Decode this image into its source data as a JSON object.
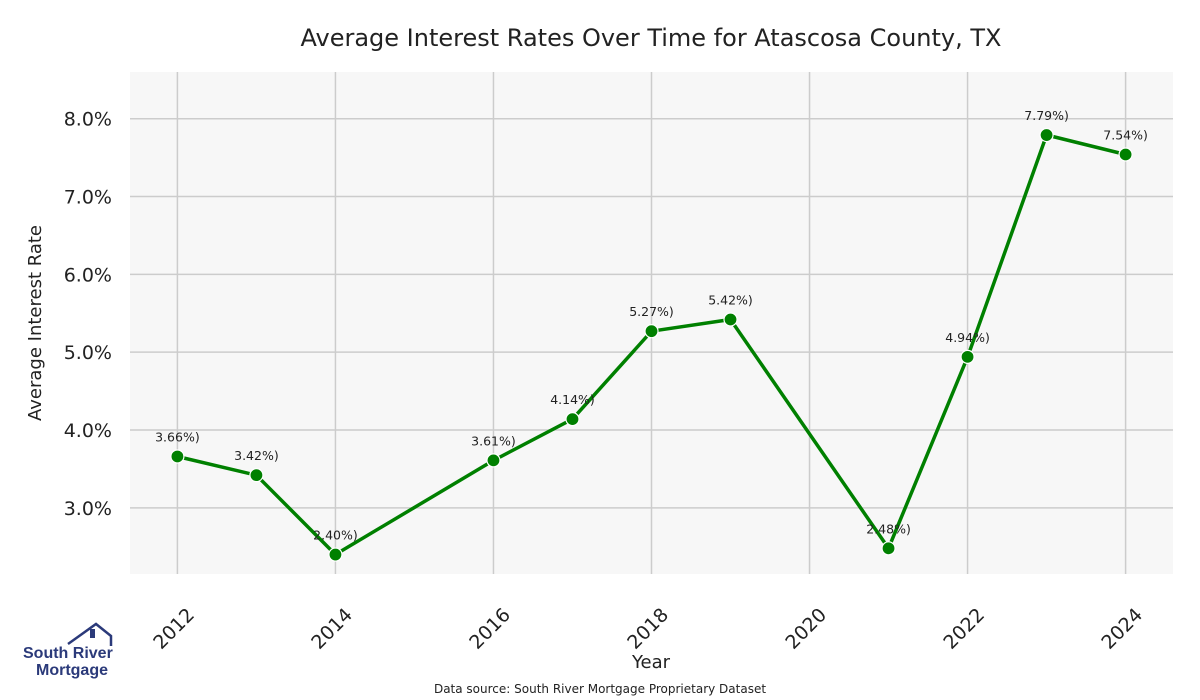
{
  "chart_data": {
    "type": "line",
    "title": "Average Interest Rates Over Time for Atascosa County, TX",
    "xlabel": "Year",
    "ylabel": "Average Interest Rate",
    "x": [
      2012,
      2013,
      2014,
      2016,
      2017,
      2018,
      2019,
      2021,
      2022,
      2023,
      2024
    ],
    "y": [
      3.66,
      3.42,
      2.4,
      3.61,
      4.14,
      5.27,
      5.42,
      2.48,
      4.94,
      7.79,
      7.54
    ],
    "point_labels": [
      "3.66%)",
      "3.42%)",
      "2.40%)",
      "3.61%)",
      "4.14%)",
      "5.27%)",
      "5.42%)",
      "2.48%)",
      "4.94%)",
      "7.79%)",
      "7.54%)"
    ],
    "x_ticks": [
      "2012",
      "2014",
      "2016",
      "2018",
      "2020",
      "2022",
      "2024"
    ],
    "y_ticks": [
      "3.0%",
      "4.0%",
      "5.0%",
      "6.0%",
      "7.0%",
      "8.0%"
    ],
    "y_tick_values": [
      3,
      4,
      5,
      6,
      7,
      8
    ],
    "x_tick_values": [
      2012,
      2014,
      2016,
      2018,
      2020,
      2022,
      2024
    ],
    "xlim": [
      2011.4,
      2024.6
    ],
    "ylim": [
      2.15,
      8.6
    ],
    "grid": true,
    "line_color": "#008000",
    "plot_background": "#f7f7f7",
    "grid_color": "#cccccc"
  },
  "source_note": "Data source: South River Mortgage Proprietary Dataset",
  "logo": {
    "line1": "South River",
    "line2": "Mortgage",
    "color": "#2b3a7a"
  }
}
